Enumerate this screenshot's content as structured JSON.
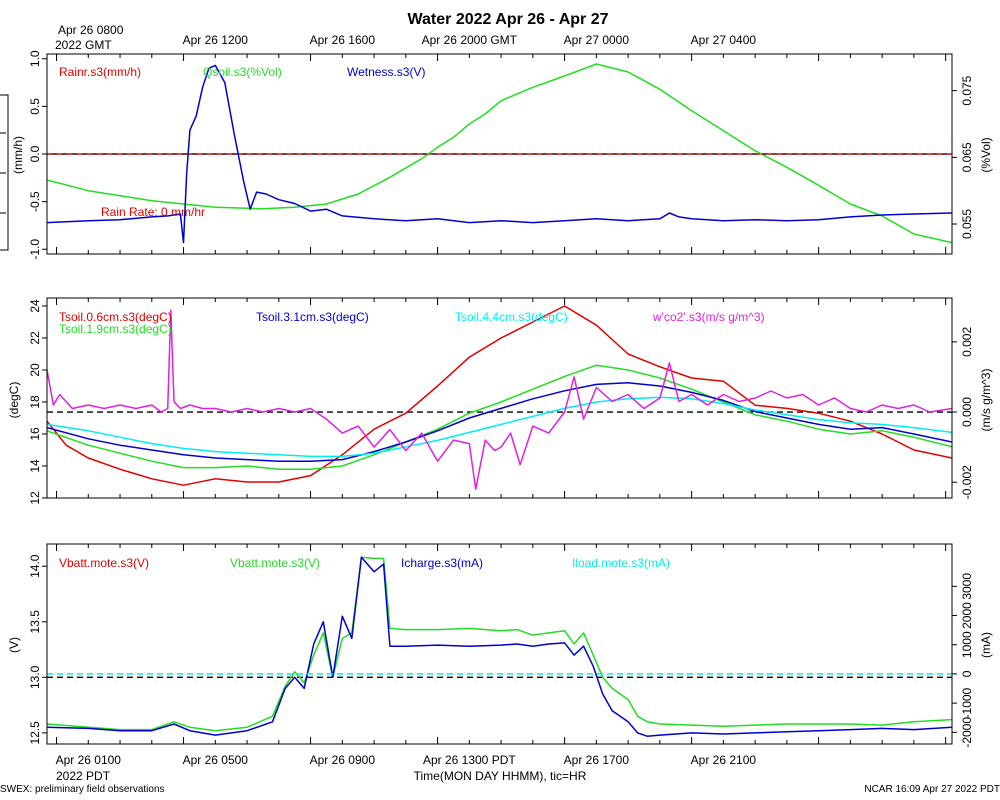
{
  "figure": {
    "title": "Water 2022 Apr 26 - Apr 27",
    "gmt_first_label_line1": "Apr 26 0800",
    "gmt_first_label_line2": "2022 GMT",
    "gmt_ticks": [
      "Apr 26 1200",
      "Apr 26 1600",
      "Apr 26 2000 GMT",
      "Apr 27 0000",
      "Apr 27 0400"
    ],
    "pdt_ticks": [
      "Apr 26 0100",
      "Apr 26 0500",
      "Apr 26 0900",
      "Apr 26 1300 PDT",
      "Apr 26 1700",
      "Apr 26 2100"
    ],
    "pdt_year": "2022 PDT",
    "xlabel": "Time(MON DAY HHMM), tic=HR",
    "footer_left": "SWEX: preliminary field observations",
    "footer_right": "NCAR 16:09 Apr 27 2022 PDT"
  },
  "colors": {
    "red": "#e00000",
    "green": "#22dd22",
    "blue": "#0000d0",
    "cyan": "#00eeee",
    "magenta": "#e020e0"
  },
  "chart_data": [
    {
      "type": "line",
      "title": "Water panel",
      "x_range_hours_pdt": [
        -0.3,
        28.2
      ],
      "left_axis": {
        "label": "(mm/h)",
        "ylim": [
          -1.05,
          1.05
        ],
        "ticks": [
          "1.0",
          "0.5",
          "0.0",
          "-0.5",
          "-1.0"
        ],
        "tick_values": [
          1.0,
          0.5,
          0.0,
          -0.5,
          -1.0
        ]
      },
      "right_axis": {
        "label": "(%Vol)",
        "ylim": [
          0.0505,
          0.0805
        ],
        "ticks": [
          "0.075",
          "0.065",
          "0.055"
        ],
        "tick_values": [
          0.075,
          0.065,
          0.055
        ]
      },
      "annotation": "Rain Rate: 0 mm/hr",
      "series": [
        {
          "name": "Rainr.s3(mm/h)",
          "color": "red",
          "axis": "left",
          "style": "solid",
          "x": [
            -0.3,
            28.2
          ],
          "y": [
            0.0,
            0.0
          ]
        },
        {
          "name": "Qsoil.s3(%Vol)",
          "color": "green",
          "axis": "right",
          "style": "solid",
          "x": [
            -0.3,
            1,
            3,
            5,
            6.5,
            7.5,
            8.5,
            9.5,
            10.5,
            11.5,
            12,
            12.5,
            13,
            13.5,
            14,
            15,
            16,
            17,
            18,
            19,
            20,
            21,
            22,
            23,
            24,
            25,
            26,
            27,
            28.2
          ],
          "y": [
            0.0616,
            0.06,
            0.0585,
            0.0575,
            0.0573,
            0.0575,
            0.058,
            0.0595,
            0.062,
            0.0648,
            0.0665,
            0.068,
            0.07,
            0.0715,
            0.0735,
            0.0755,
            0.0772,
            0.079,
            0.0778,
            0.0752,
            0.072,
            0.069,
            0.066,
            0.0635,
            0.0608,
            0.058,
            0.0562,
            0.0535,
            0.0522
          ]
        },
        {
          "name": "Wetness.s3(V)",
          "color": "blue",
          "axis": "left",
          "style": "solid",
          "x": [
            -0.3,
            1,
            2,
            3,
            3.5,
            3.9,
            4.0,
            4.1,
            4.2,
            4.4,
            4.6,
            4.8,
            5.0,
            5.3,
            5.6,
            5.9,
            6.1,
            6.3,
            6.6,
            7.0,
            7.5,
            8,
            8.5,
            9,
            10,
            11,
            12,
            13,
            14,
            15,
            16,
            17,
            18,
            19,
            19.3,
            19.6,
            20,
            21,
            22,
            23,
            24,
            25,
            26,
            27,
            28.2
          ],
          "y": [
            -0.72,
            -0.7,
            -0.69,
            -0.66,
            -0.65,
            -0.63,
            -0.93,
            -0.2,
            0.25,
            0.4,
            0.7,
            0.9,
            0.93,
            0.75,
            0.2,
            -0.3,
            -0.58,
            -0.4,
            -0.42,
            -0.48,
            -0.52,
            -0.6,
            -0.58,
            -0.65,
            -0.68,
            -0.7,
            -0.68,
            -0.72,
            -0.7,
            -0.72,
            -0.7,
            -0.68,
            -0.7,
            -0.68,
            -0.62,
            -0.66,
            -0.68,
            -0.7,
            -0.69,
            -0.7,
            -0.69,
            -0.66,
            -0.64,
            -0.63,
            -0.62
          ]
        }
      ]
    },
    {
      "type": "line",
      "title": "Soil temperature panel",
      "x_range_hours_pdt": [
        -0.3,
        28.2
      ],
      "left_axis": {
        "label": "(degC)",
        "ylim": [
          12.0,
          24.5
        ],
        "ticks": [
          "24",
          "22",
          "20",
          "18",
          "16",
          "14",
          "12"
        ],
        "tick_values": [
          24,
          22,
          20,
          18,
          16,
          14,
          12
        ]
      },
      "right_axis": {
        "label": "(m/s g/m^3)",
        "ylim": [
          -0.00245,
          0.00325
        ],
        "ticks": [
          "0.002",
          "0.000",
          "-0.002"
        ],
        "tick_values": [
          0.002,
          0.0,
          -0.002
        ]
      },
      "series": [
        {
          "name": "Tsoil.0.6cm.s3(degC)",
          "color": "red",
          "axis": "left",
          "style": "solid",
          "x": [
            -0.3,
            0.3,
            1,
            2,
            3,
            4,
            5,
            6,
            7,
            8,
            9,
            10,
            11,
            12,
            13,
            14,
            15,
            16,
            17,
            18,
            19,
            20,
            21,
            22,
            23,
            24,
            25,
            26,
            27,
            28.2
          ],
          "y": [
            16.8,
            15.3,
            14.5,
            13.8,
            13.2,
            12.8,
            13.2,
            13.0,
            13.0,
            13.4,
            14.7,
            16.3,
            17.3,
            19.0,
            20.8,
            22.0,
            23.0,
            24.0,
            22.8,
            21.0,
            20.2,
            19.5,
            19.3,
            17.8,
            17.6,
            17.3,
            16.8,
            16.0,
            15.0,
            14.5
          ]
        },
        {
          "name": "Tsoil.1.9cm.s3(degC)",
          "color": "green",
          "axis": "left",
          "style": "solid",
          "x": [
            -0.3,
            1,
            2,
            3,
            4,
            5,
            6,
            7,
            8,
            9,
            10,
            11,
            12,
            13,
            14,
            15,
            16,
            17,
            18,
            19,
            20,
            21,
            22,
            23,
            24,
            25,
            26,
            27,
            28.2
          ],
          "y": [
            16.2,
            15.3,
            14.8,
            14.3,
            13.9,
            13.9,
            14.0,
            13.8,
            13.8,
            14.0,
            14.7,
            15.5,
            16.3,
            17.3,
            18.0,
            18.8,
            19.6,
            20.3,
            20.0,
            19.5,
            18.8,
            18.0,
            17.2,
            16.8,
            16.3,
            16.0,
            16.2,
            15.8,
            15.2
          ]
        },
        {
          "name": "Tsoil.3.1cm.s3(degC)",
          "color": "blue",
          "axis": "left",
          "style": "solid",
          "x": [
            -0.3,
            1,
            2,
            3,
            4,
            5,
            6,
            7,
            8,
            9,
            10,
            11,
            12,
            13,
            14,
            15,
            16,
            17,
            18,
            19,
            20,
            21,
            22,
            23,
            24,
            25,
            26,
            27,
            28.2
          ],
          "y": [
            16.4,
            15.7,
            15.3,
            15.0,
            14.7,
            14.5,
            14.4,
            14.3,
            14.3,
            14.4,
            14.9,
            15.5,
            16.2,
            17.0,
            17.6,
            18.2,
            18.7,
            19.1,
            19.2,
            19.0,
            18.6,
            18.1,
            17.4,
            17.0,
            16.6,
            16.3,
            16.4,
            16.0,
            15.5
          ]
        },
        {
          "name": "Tsoil.4.4cm.s3(degC)",
          "color": "cyan",
          "axis": "left",
          "style": "solid",
          "x": [
            -0.3,
            1,
            2,
            3,
            4,
            5,
            6,
            7,
            8,
            9,
            10,
            11,
            12,
            13,
            14,
            15,
            16,
            17,
            18,
            19,
            20,
            21,
            22,
            23,
            24,
            25,
            26,
            27,
            28.2
          ],
          "y": [
            16.6,
            16.2,
            15.8,
            15.4,
            15.1,
            14.9,
            14.8,
            14.7,
            14.6,
            14.6,
            14.8,
            15.2,
            15.6,
            16.1,
            16.6,
            17.1,
            17.6,
            18.0,
            18.2,
            18.3,
            18.2,
            17.9,
            17.5,
            17.2,
            16.9,
            16.7,
            16.6,
            16.4,
            16.1
          ]
        },
        {
          "name": "w'co2'.s3(m/s g/m^3)",
          "color": "magenta",
          "axis": "right",
          "style": "solid",
          "x": [
            -0.3,
            -0.1,
            0.1,
            0.5,
            1,
            1.5,
            2,
            2.5,
            3,
            3.3,
            3.5,
            3.6,
            3.7,
            3.9,
            4.2,
            4.6,
            5,
            5.5,
            6,
            6.5,
            7,
            7.5,
            8,
            8.5,
            9,
            9.5,
            10,
            10.5,
            11,
            11.5,
            12,
            12.5,
            13,
            13.2,
            13.5,
            13.8,
            14,
            14.3,
            14.6,
            15,
            15.5,
            16,
            16.3,
            16.6,
            17,
            17.5,
            18,
            18.5,
            19,
            19.3,
            19.6,
            20,
            20.5,
            21,
            21.5,
            22,
            22.5,
            23,
            23.5,
            24,
            24.5,
            25,
            25.5,
            26,
            26.5,
            27,
            27.5,
            28.2
          ],
          "y": [
            0.0012,
            0.0002,
            0.0005,
            0.0001,
            0.0002,
            0.0001,
            0.0002,
            0.0001,
            0.0002,
            0.0,
            0.0001,
            0.0029,
            0.0003,
            0.0001,
            0.0002,
            0.0001,
            0.0001,
            0.0,
            0.0001,
            0.0,
            0.0001,
            0.0,
            0.0001,
            -0.0002,
            -0.0006,
            -0.0004,
            -0.001,
            -0.0005,
            -0.0011,
            -0.0006,
            -0.0014,
            -0.0008,
            -0.0009,
            -0.0022,
            -0.0008,
            -0.0011,
            -0.001,
            -0.0006,
            -0.0015,
            -0.0004,
            -0.0006,
            0.0,
            0.001,
            -0.0002,
            0.0007,
            0.0003,
            0.0005,
            0.0001,
            0.0004,
            0.0014,
            0.0003,
            0.0005,
            0.0002,
            0.0005,
            0.0003,
            0.0004,
            0.0006,
            0.0004,
            0.0005,
            0.0002,
            0.0004,
            0.0001,
            0.0,
            0.0002,
            0.0001,
            0.0002,
            0.0,
            0.0001
          ]
        }
      ],
      "reference_line": {
        "axis": "right",
        "y": 0.0,
        "style": "dashed",
        "color": "#000000"
      }
    },
    {
      "type": "line",
      "title": "Battery / charge panel",
      "x_range_hours_pdt": [
        -0.3,
        28.2
      ],
      "left_axis": {
        "label": "(V)",
        "ylim": [
          12.4,
          14.2
        ],
        "ticks": [
          "14.0",
          "13.5",
          "13.0",
          "12.5"
        ],
        "tick_values": [
          14.0,
          13.5,
          13.0,
          12.5
        ]
      },
      "right_axis": {
        "label": "(mA)",
        "ylim": [
          -2400,
          4450
        ],
        "ticks": [
          "3000",
          "2000",
          "1000",
          "0",
          "-1000",
          "-2000"
        ],
        "tick_values": [
          3000,
          2000,
          1000,
          0,
          -1000,
          -2000
        ]
      },
      "series": [
        {
          "name": "Vbatt.mote.s3(V)",
          "color": "red",
          "axis": "left",
          "style": "hidden",
          "x": [],
          "y": []
        },
        {
          "name": "Vbatt.mote.s3(V)",
          "color": "green",
          "axis": "left",
          "style": "solid",
          "x": [
            -0.3,
            1,
            2,
            3,
            3.7,
            4.2,
            5,
            6,
            6.8,
            7.2,
            7.5,
            7.8,
            8.1,
            8.4,
            8.7,
            9.0,
            9.3,
            9.6,
            10.0,
            10.3,
            10.5,
            11,
            12,
            13,
            14,
            14.5,
            15,
            15.5,
            16,
            16.3,
            16.6,
            16.9,
            17.2,
            17.5,
            18,
            18.3,
            18.6,
            19,
            20,
            21,
            22,
            23,
            24,
            25,
            26,
            27,
            28.2
          ],
          "y": [
            12.58,
            12.55,
            12.53,
            12.53,
            12.6,
            12.55,
            12.52,
            12.55,
            12.65,
            12.92,
            13.05,
            12.95,
            13.2,
            13.4,
            13.0,
            13.35,
            13.4,
            14.08,
            14.07,
            14.07,
            13.44,
            13.43,
            13.43,
            13.44,
            13.42,
            13.43,
            13.38,
            13.4,
            13.42,
            13.3,
            13.4,
            13.2,
            13.0,
            12.9,
            12.8,
            12.65,
            12.6,
            12.58,
            12.57,
            12.56,
            12.57,
            12.58,
            12.58,
            12.58,
            12.57,
            12.6,
            12.62
          ]
        },
        {
          "name": "Icharge.s3(mA)",
          "color": "blue",
          "axis": "left",
          "style": "solid",
          "x": [
            -0.3,
            1,
            2,
            3,
            3.7,
            4.2,
            5,
            6,
            6.8,
            7.2,
            7.5,
            7.8,
            8.1,
            8.4,
            8.7,
            9.0,
            9.3,
            9.6,
            10.0,
            10.3,
            10.5,
            11,
            12,
            13,
            14,
            14.5,
            15,
            15.5,
            16,
            16.3,
            16.6,
            16.9,
            17.2,
            17.5,
            18,
            18.3,
            18.6,
            19,
            20,
            21,
            22,
            23,
            24,
            25,
            26,
            27,
            28.2
          ],
          "y": [
            12.55,
            12.54,
            12.52,
            12.52,
            12.58,
            12.52,
            12.48,
            12.52,
            12.6,
            12.9,
            13.0,
            12.9,
            13.3,
            13.5,
            13.0,
            13.55,
            13.35,
            14.08,
            13.95,
            14.02,
            13.28,
            13.28,
            13.29,
            13.28,
            13.29,
            13.3,
            13.28,
            13.3,
            13.31,
            13.2,
            13.28,
            13.1,
            12.85,
            12.7,
            12.6,
            12.5,
            12.47,
            12.48,
            12.5,
            12.49,
            12.5,
            12.51,
            12.52,
            12.53,
            12.54,
            12.53,
            12.55
          ]
        },
        {
          "name": "Iload.mote.s3(mA)",
          "color": "cyan",
          "axis": "right",
          "style": "dashed",
          "x": [
            -0.3,
            28.2
          ],
          "y": [
            0,
            0
          ]
        }
      ],
      "reference_line": {
        "axis": "left",
        "y": 13.0,
        "style": "dashed",
        "color": "#000000"
      }
    }
  ]
}
